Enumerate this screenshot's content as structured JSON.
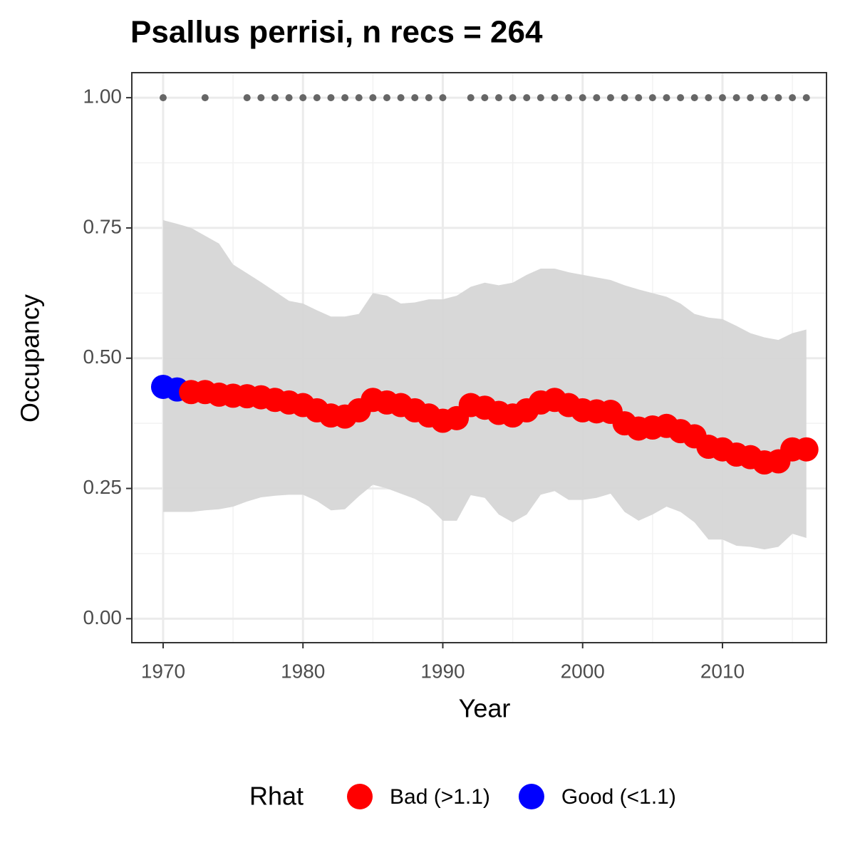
{
  "chart_data": {
    "type": "scatter",
    "title": "Psallus perrisi, n recs = 264",
    "x_label": "Year",
    "y_label": "Occupancy",
    "xlim": [
      1967.76,
      2017.44
    ],
    "ylim": [
      -0.046,
      1.048
    ],
    "xticks": [
      1970,
      1980,
      1990,
      2000,
      2010
    ],
    "xminor": [
      1975,
      1985,
      1995,
      2005,
      2015
    ],
    "yticks": [
      {
        "value": 0,
        "label": "0.00"
      },
      {
        "value": 0.25,
        "label": "0.25"
      },
      {
        "value": 0.5,
        "label": "0.50"
      },
      {
        "value": 0.75,
        "label": "0.75"
      },
      {
        "value": 1,
        "label": "1.00"
      }
    ],
    "yminor": [
      0.125,
      0.375,
      0.625,
      0.875
    ],
    "grid": true,
    "x": [
      1970,
      1971,
      1972,
      1973,
      1974,
      1975,
      1976,
      1977,
      1978,
      1979,
      1980,
      1981,
      1982,
      1983,
      1984,
      1985,
      1986,
      1987,
      1988,
      1989,
      1990,
      1991,
      1992,
      1993,
      1994,
      1995,
      1996,
      1997,
      1998,
      1999,
      2000,
      2001,
      2002,
      2003,
      2004,
      2005,
      2006,
      2007,
      2008,
      2009,
      2010,
      2011,
      2012,
      2013,
      2014,
      2015,
      2016
    ],
    "values": [
      0.445,
      0.44,
      0.435,
      0.435,
      0.43,
      0.428,
      0.427,
      0.425,
      0.42,
      0.415,
      0.41,
      0.4,
      0.39,
      0.388,
      0.4,
      0.42,
      0.415,
      0.41,
      0.4,
      0.39,
      0.38,
      0.385,
      0.41,
      0.405,
      0.395,
      0.39,
      0.4,
      0.415,
      0.42,
      0.41,
      0.4,
      0.398,
      0.397,
      0.375,
      0.365,
      0.367,
      0.37,
      0.36,
      0.35,
      0.33,
      0.325,
      0.315,
      0.31,
      0.3,
      0.302,
      0.325,
      0.325
    ],
    "upper": [
      0.765,
      0.758,
      0.75,
      0.735,
      0.72,
      0.68,
      0.663,
      0.646,
      0.628,
      0.61,
      0.605,
      0.592,
      0.58,
      0.58,
      0.585,
      0.625,
      0.62,
      0.605,
      0.607,
      0.613,
      0.613,
      0.62,
      0.637,
      0.645,
      0.64,
      0.645,
      0.66,
      0.672,
      0.672,
      0.665,
      0.66,
      0.655,
      0.65,
      0.64,
      0.632,
      0.625,
      0.618,
      0.605,
      0.585,
      0.578,
      0.575,
      0.562,
      0.548,
      0.54,
      0.535,
      0.548,
      0.555
    ],
    "lower": [
      0.205,
      0.205,
      0.205,
      0.208,
      0.21,
      0.215,
      0.225,
      0.233,
      0.236,
      0.238,
      0.238,
      0.226,
      0.208,
      0.21,
      0.235,
      0.257,
      0.25,
      0.24,
      0.23,
      0.215,
      0.188,
      0.188,
      0.237,
      0.232,
      0.2,
      0.185,
      0.2,
      0.238,
      0.245,
      0.228,
      0.228,
      0.232,
      0.24,
      0.205,
      0.188,
      0.2,
      0.215,
      0.205,
      0.185,
      0.152,
      0.152,
      0.14,
      0.138,
      0.133,
      0.138,
      0.163,
      0.155
    ],
    "rhat_class": [
      1,
      1,
      0,
      0,
      0,
      0,
      0,
      0,
      0,
      0,
      0,
      0,
      0,
      0,
      0,
      0,
      0,
      0,
      0,
      0,
      0,
      0,
      0,
      0,
      0,
      0,
      0,
      0,
      0,
      0,
      0,
      0,
      0,
      0,
      0,
      0,
      0,
      0,
      0,
      0,
      0,
      0,
      0,
      0,
      0,
      0,
      0
    ],
    "ribbon_color": "#d6d6d6",
    "record_color": "#666666",
    "record_x": [
      1970,
      1973,
      1976,
      1977,
      1978,
      1979,
      1980,
      1981,
      1982,
      1983,
      1984,
      1985,
      1986,
      1987,
      1988,
      1989,
      1990,
      1992,
      1993,
      1994,
      1995,
      1996,
      1997,
      1998,
      1999,
      2000,
      2001,
      2002,
      2003,
      2004,
      2005,
      2006,
      2007,
      2008,
      2009,
      2010,
      2011,
      2012,
      2013,
      2014,
      2015,
      2016
    ],
    "record_values": [
      1,
      1,
      1,
      1,
      1,
      1,
      1,
      1,
      1,
      1,
      1,
      1,
      1,
      1,
      1,
      1,
      1,
      1,
      1,
      1,
      1,
      1,
      1,
      1,
      1,
      1,
      1,
      1,
      1,
      1,
      1,
      1,
      1,
      1,
      1,
      1,
      1,
      1,
      1,
      1,
      1,
      1
    ],
    "legend": {
      "title": "Rhat",
      "entries": [
        {
          "label": "Bad (>1.1)",
          "color": "#ff0000"
        },
        {
          "label": "Good (<1.1)",
          "color": "#0000ff"
        }
      ]
    }
  }
}
